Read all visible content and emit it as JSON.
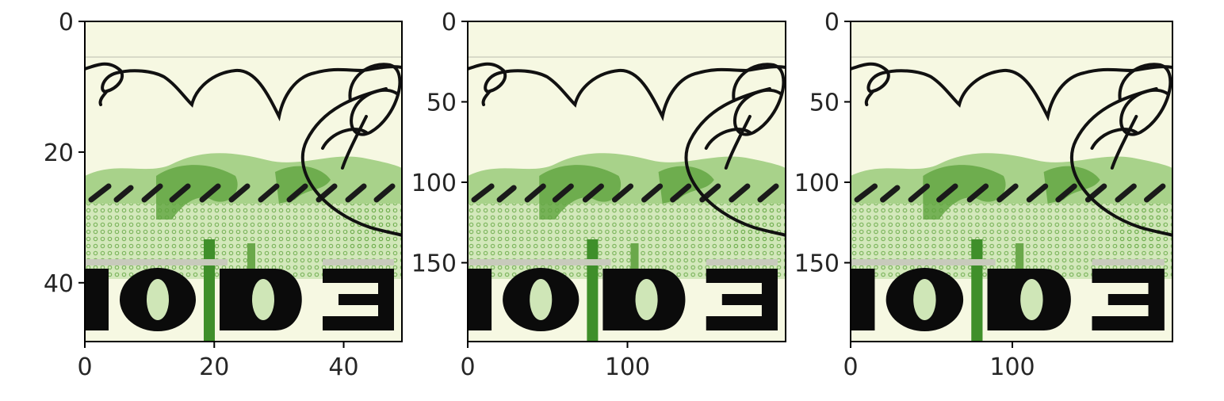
{
  "chart_data": [
    {
      "type": "image",
      "xlim": [
        0,
        49
      ],
      "ylim": [
        49,
        0
      ],
      "xticks": [
        0,
        20,
        40
      ],
      "yticks": [
        0,
        20,
        40
      ],
      "grid": false,
      "xlabel": "",
      "ylabel": ""
    },
    {
      "type": "image",
      "xlim": [
        0,
        199
      ],
      "ylim": [
        199,
        0
      ],
      "xticks": [
        0,
        100
      ],
      "yticks": [
        0,
        50,
        100,
        150
      ],
      "grid": false,
      "xlabel": "",
      "ylabel": ""
    },
    {
      "type": "image",
      "xlim": [
        0,
        199
      ],
      "ylim": [
        199,
        0
      ],
      "xticks": [
        0,
        100
      ],
      "yticks": [
        0,
        50,
        100,
        150
      ],
      "grid": false,
      "xlabel": "",
      "ylabel": ""
    }
  ],
  "image_content": {
    "printed_text": "IODE",
    "colors": {
      "paper": "#f6f8e2",
      "green_light": "#9ccb7c",
      "green_dark": "#3f8f2a",
      "ink": "#0b0b0b"
    }
  }
}
